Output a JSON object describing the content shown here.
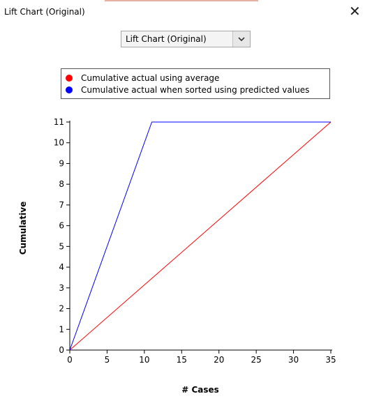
{
  "window": {
    "title": "Lift Chart (Original)"
  },
  "selector": {
    "value": "Lift Chart (Original)"
  },
  "legend_items": [
    {
      "label": "Cumulative actual using average",
      "color": "#ff0000"
    },
    {
      "label": "Cumulative actual when sorted using predicted values",
      "color": "#0000ff"
    }
  ],
  "chart_data": {
    "type": "line",
    "xlabel": "# Cases",
    "ylabel": "Cumulative",
    "xlim": [
      0,
      35
    ],
    "ylim": [
      0,
      11
    ],
    "xticks": [
      0,
      5,
      10,
      15,
      20,
      25,
      30,
      35
    ],
    "yticks": [
      0,
      1,
      2,
      3,
      4,
      5,
      6,
      7,
      8,
      9,
      10,
      11
    ],
    "grid": false,
    "legend_position": "top",
    "series": [
      {
        "name": "Cumulative actual using average",
        "color": "#ff0000",
        "x": [
          0,
          35
        ],
        "y": [
          0,
          11
        ]
      },
      {
        "name": "Cumulative actual when sorted using predicted values",
        "color": "#0000ff",
        "x": [
          0,
          11,
          35
        ],
        "y": [
          0,
          11,
          11
        ]
      }
    ]
  }
}
